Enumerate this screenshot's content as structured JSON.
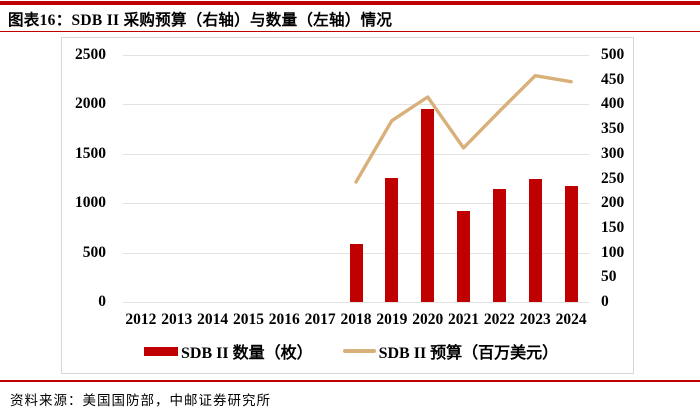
{
  "header": {
    "title": "图表16：SDB II 采购预算（右轴）与数量（左轴）情况"
  },
  "footer": {
    "source_text": "资料来源：美国国防部，中邮证券研究所"
  },
  "colors": {
    "accent_red": "#c00000",
    "bar": "#c00000",
    "line": "#d9b07a",
    "grid": "#e3e3e3",
    "frame_border": "#d6d6d6"
  },
  "chart_data": {
    "type": "bar+line",
    "title": "SDB II 采购预算（右轴）与数量（左轴）情况",
    "categories": [
      "2012",
      "2013",
      "2014",
      "2015",
      "2016",
      "2017",
      "2018",
      "2019",
      "2020",
      "2021",
      "2022",
      "2023",
      "2024"
    ],
    "series": [
      {
        "name": "SDB II 数量（枚）",
        "type": "bar",
        "axis": "left",
        "color": "#c00000",
        "values": [
          null,
          null,
          null,
          null,
          null,
          null,
          590,
          1260,
          1950,
          920,
          1140,
          1250,
          1170
        ]
      },
      {
        "name": "SDB II 预算（百万美元）",
        "type": "line",
        "axis": "right",
        "color": "#d9b07a",
        "values": [
          null,
          null,
          null,
          null,
          null,
          null,
          243,
          367,
          415,
          312,
          386,
          458,
          446
        ]
      }
    ],
    "left_axis": {
      "min": 0,
      "max": 2500,
      "step": 500,
      "tick_labels": [
        "0",
        "500",
        "1000",
        "1500",
        "2000",
        "2500"
      ]
    },
    "right_axis": {
      "min": 0,
      "max": 500,
      "step": 50,
      "tick_labels": [
        "0",
        "50",
        "100",
        "150",
        "200",
        "250",
        "300",
        "350",
        "400",
        "450",
        "500"
      ]
    },
    "grid": "horizontal",
    "legend_position": "bottom"
  }
}
